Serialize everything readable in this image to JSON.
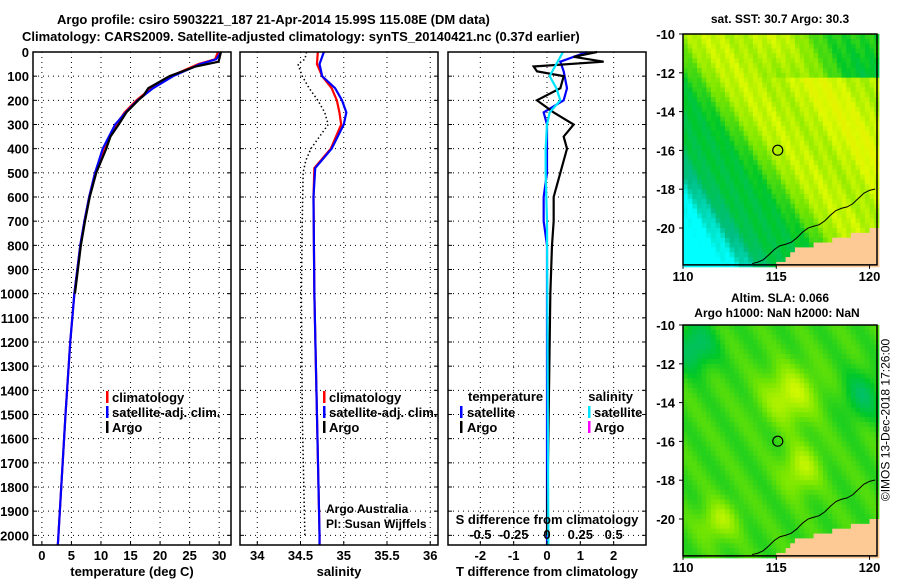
{
  "title_line1": "Argo profile: csiro 5903221_187 21-Apr-2014 15.99S 115.08E (DM data)",
  "title_line2": "Climatology: CARS2009. Satellite-adjusted climatology: synTS_20140421.nc (0.37d earlier)",
  "credit_line1": "Argo Australia",
  "credit_line2": "PI: Susan Wijffels",
  "timestamp": "©IMOS 13-Dec-2018 17:26:00",
  "colors": {
    "climatology": "#ff0000",
    "satellite": "#0000ff",
    "argo": "#000000",
    "sal_satellite": "#00e5ff",
    "sal_argo": "#ff00ff"
  },
  "chart_data": [
    {
      "type": "line",
      "name": "temperature-profile",
      "xlabel": "temperature (deg C)",
      "ylabel": "depth",
      "xlim": [
        -1.5,
        32
      ],
      "ylim": [
        2040,
        0
      ],
      "xticks": [
        0,
        5,
        10,
        15,
        20,
        25,
        30
      ],
      "xtick_labels": [
        "0",
        "5",
        "10",
        "15",
        "20",
        "25",
        "30"
      ],
      "yticks": [
        0,
        100,
        200,
        300,
        400,
        500,
        600,
        700,
        800,
        900,
        1000,
        1100,
        1200,
        1300,
        1400,
        1500,
        1600,
        1700,
        1800,
        1900,
        2000
      ],
      "ytick_labels": [
        "0",
        "100",
        "200",
        "300",
        "400",
        "500",
        "600",
        "700",
        "800",
        "900",
        "1000",
        "1100",
        "1200",
        "1300",
        "1400",
        "1500",
        "1600",
        "1700",
        "1800",
        "1900",
        "2000"
      ],
      "grid": true,
      "legend": [
        "climatology",
        "satellite-adj. clim.",
        "Argo"
      ],
      "series": [
        {
          "name": "climatology",
          "color": "#ff0000",
          "depth": [
            0,
            30,
            50,
            100,
            150,
            200,
            250,
            300,
            400,
            500,
            600,
            700,
            800,
            1000,
            1200,
            1500,
            2000,
            2040
          ],
          "values": [
            29.8,
            29.3,
            26.5,
            21.8,
            18.5,
            16.0,
            14.0,
            12.6,
            10.5,
            9.0,
            8.0,
            7.2,
            6.5,
            5.5,
            4.8,
            4.0,
            2.8,
            2.7
          ]
        },
        {
          "name": "satellite-adj. clim.",
          "color": "#0000ff",
          "depth": [
            0,
            30,
            50,
            100,
            150,
            200,
            250,
            300,
            400,
            500,
            600,
            700,
            800,
            1000,
            1200,
            1500,
            2000,
            2040
          ],
          "values": [
            30.3,
            29.5,
            26.8,
            22.2,
            18.8,
            16.2,
            14.2,
            12.4,
            10.3,
            9.0,
            8.0,
            7.2,
            6.5,
            5.5,
            4.8,
            4.0,
            2.8,
            2.7
          ]
        },
        {
          "name": "Argo",
          "color": "#000000",
          "depth": [
            0,
            20,
            40,
            60,
            100,
            150,
            180,
            200,
            250,
            300,
            350,
            400,
            500,
            600,
            700,
            800,
            1000
          ],
          "values": [
            30.3,
            30.1,
            29.9,
            26.0,
            21.6,
            18.0,
            17.2,
            16.3,
            14.3,
            13.0,
            11.6,
            10.9,
            9.2,
            8.1,
            7.3,
            6.6,
            5.6
          ]
        }
      ]
    },
    {
      "type": "line",
      "name": "salinity-profile",
      "xlabel": "salinity",
      "xlim": [
        33.8,
        36.09
      ],
      "ylim": [
        2040,
        0
      ],
      "xticks": [
        34,
        34.5,
        35,
        35.5,
        36
      ],
      "xtick_labels": [
        "34",
        "34.5",
        "35",
        "35.5",
        "36"
      ],
      "grid": true,
      "legend": [
        "climatology",
        "satellite-adj. clim.",
        "Argo"
      ],
      "series": [
        {
          "name": "climatology",
          "color": "#ff0000",
          "depth": [
            0,
            50,
            100,
            150,
            200,
            250,
            300,
            400,
            480,
            600,
            1000,
            1500,
            2000,
            2040
          ],
          "values": [
            34.7,
            34.69,
            34.75,
            34.86,
            34.92,
            34.95,
            34.97,
            34.85,
            34.66,
            34.65,
            34.66,
            34.69,
            34.72,
            34.72
          ]
        },
        {
          "name": "satellite-adj. clim.",
          "color": "#0000ff",
          "depth": [
            0,
            50,
            100,
            150,
            200,
            250,
            300,
            400,
            480,
            600,
            1000,
            1500,
            2000,
            2040
          ],
          "values": [
            34.77,
            34.72,
            34.75,
            34.9,
            34.98,
            35.03,
            35.0,
            34.86,
            34.67,
            34.65,
            34.66,
            34.69,
            34.72,
            34.72
          ]
        },
        {
          "name": "Argo",
          "color": "#000000",
          "depth": [
            0,
            30,
            50,
            100,
            150,
            200,
            250,
            300,
            350,
            400,
            450,
            500,
            700,
            1000,
            1500,
            2000
          ],
          "values": [
            34.57,
            34.55,
            34.47,
            34.52,
            34.6,
            34.7,
            34.78,
            34.82,
            34.72,
            34.62,
            34.56,
            34.53,
            34.52,
            34.51,
            34.52,
            34.55
          ]
        }
      ]
    },
    {
      "type": "line",
      "name": "difference-profile",
      "xlabel": "T difference from climatology",
      "xlabel2": "S difference from climatology",
      "xlim": [
        -2.97,
        2.97
      ],
      "ylim": [
        2040,
        0
      ],
      "xticks": [
        -2,
        -1,
        0,
        1,
        2
      ],
      "xtick_labels": [
        "-2",
        "-1",
        "0",
        "1",
        "2"
      ],
      "xticks2": [
        -0.5,
        -0.25,
        0,
        0.25,
        0.5
      ],
      "xtick2_labels": [
        "-0.5",
        "-0.25",
        "0",
        "0.25",
        "0.5"
      ],
      "grid": true,
      "legend_t": {
        "title": "temperature",
        "items": [
          "satellite",
          "Argo"
        ]
      },
      "legend_s": {
        "title": "salinity",
        "items": [
          "satellite",
          "Argo"
        ]
      },
      "series": [
        {
          "name": "T satellite",
          "color": "#0000ff",
          "scale": "T",
          "depth": [
            0,
            40,
            80,
            150,
            200,
            250,
            300,
            500,
            600,
            700,
            800,
            2000,
            2040
          ],
          "values": [
            1.2,
            0.4,
            0.5,
            0.6,
            0.5,
            -0.1,
            0.0,
            0.0,
            -0.1,
            -0.1,
            0.0,
            0.0,
            0.0
          ]
        },
        {
          "name": "T Argo",
          "color": "#000000",
          "scale": "T",
          "depth": [
            0,
            20,
            40,
            60,
            80,
            100,
            150,
            200,
            250,
            300,
            350,
            400,
            500,
            600,
            700,
            800,
            1000,
            1500,
            2000
          ],
          "values": [
            1.5,
            0.8,
            1.7,
            -0.4,
            -0.3,
            0.5,
            0.4,
            -0.3,
            0.2,
            0.8,
            0.5,
            0.6,
            0.4,
            0.2,
            0.2,
            0.15,
            0.1,
            0.05,
            0.0
          ]
        },
        {
          "name": "S satellite",
          "color": "#00e5ff",
          "scale": "S",
          "depth": [
            0,
            50,
            100,
            150,
            200,
            250,
            300,
            400,
            500,
            700,
            2000,
            2040
          ],
          "values": [
            0.12,
            0.07,
            0.02,
            0.07,
            0.1,
            0.02,
            0.0,
            -0.01,
            -0.01,
            0.0,
            0.01,
            0.01
          ]
        }
      ]
    },
    {
      "type": "heatmap",
      "name": "sst-map",
      "title": "sat. SST: 30.7 Argo: 30.3",
      "xlim": [
        110,
        120.4
      ],
      "ylim": [
        -21.9,
        -10
      ],
      "xticks": [
        110,
        115,
        120
      ],
      "xtick_labels": [
        "110",
        "115",
        "120"
      ],
      "yticks": [
        -10,
        -12,
        -14,
        -16,
        -18,
        -20
      ],
      "ytick_labels": [
        "-10",
        "-12",
        "-14",
        "-16",
        "-18",
        "-20"
      ],
      "marker": {
        "lon": 115.08,
        "lat": -15.99
      }
    },
    {
      "type": "heatmap",
      "name": "sla-map",
      "title": "Altim. SLA: 0.066",
      "subtitle": "Argo h1000: NaN h2000: NaN",
      "xlim": [
        110,
        120.4
      ],
      "ylim": [
        -21.9,
        -10
      ],
      "xticks": [
        110,
        115,
        120
      ],
      "xtick_labels": [
        "110",
        "115",
        "120"
      ],
      "yticks": [
        -10,
        -12,
        -14,
        -16,
        -18,
        -20
      ],
      "ytick_labels": [
        "-10",
        "-12",
        "-14",
        "-16",
        "-18",
        "-20"
      ],
      "marker": {
        "lon": 115.08,
        "lat": -15.99
      }
    }
  ]
}
